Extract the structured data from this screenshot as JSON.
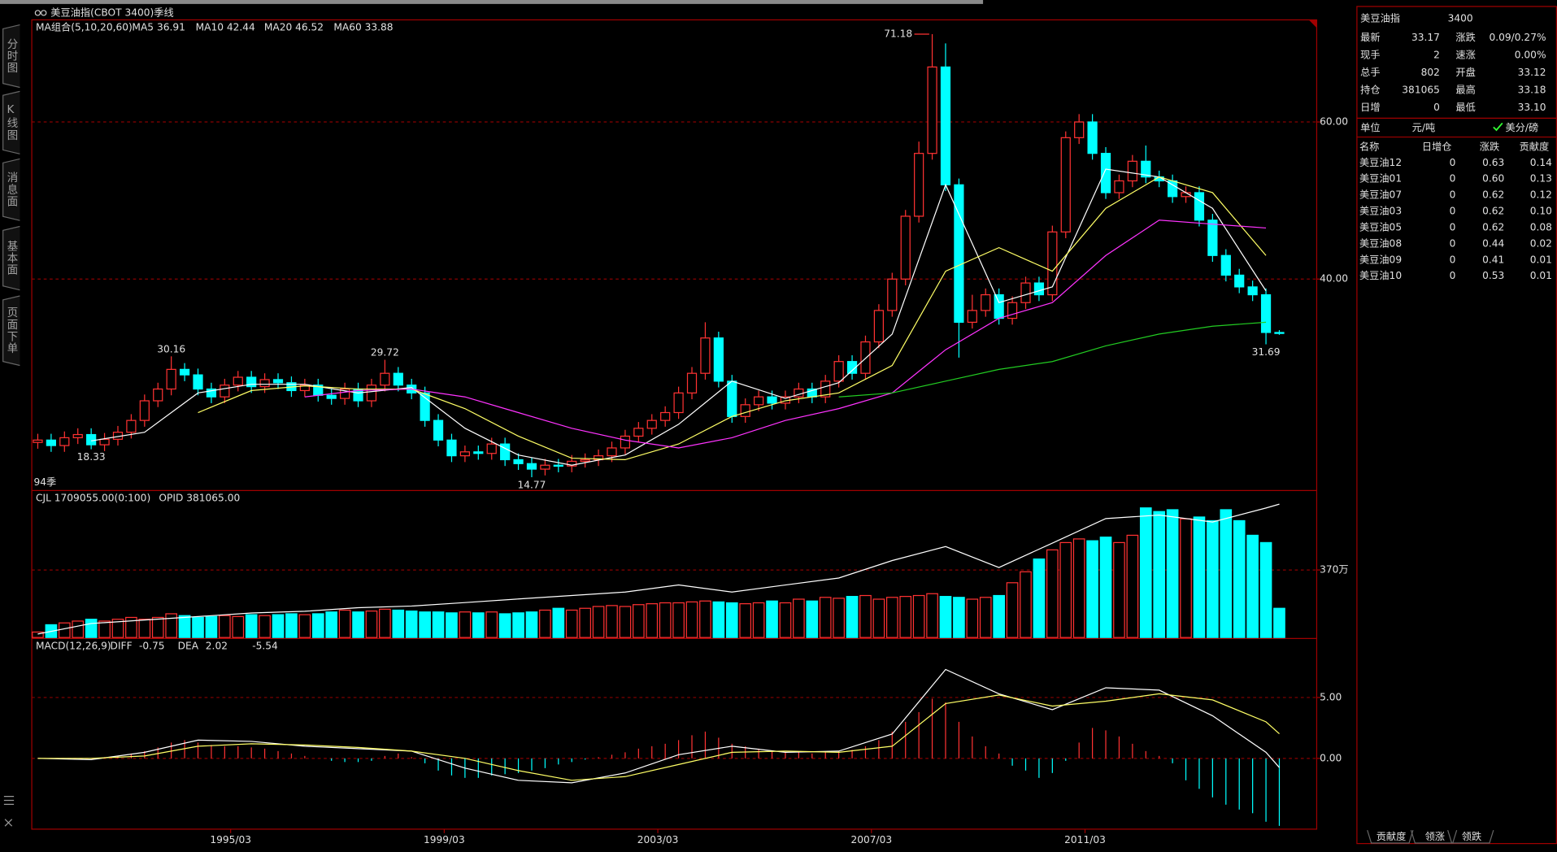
{
  "header": {
    "title": "美豆油指(CBOT 3400)季线"
  },
  "sidebar": {
    "tabs": [
      "分时图",
      "K线图",
      "消息面",
      "基本面",
      "页面下单"
    ]
  },
  "chart_data": [
    {
      "type": "candlestick",
      "legend_title": "MA组合(5,10,20,60)",
      "period_label": "94季",
      "up_color": "#ff3232",
      "down_color": "#00ffff",
      "open": [
        19.2,
        19.5,
        18.8,
        19.8,
        20.2,
        18.9,
        19.6,
        20.5,
        22.0,
        24.5,
        26.0,
        28.5,
        27.8,
        26.0,
        25.0,
        26.5,
        27.5,
        26.3,
        27.2,
        26.8,
        25.8,
        26.5,
        25.2,
        24.8,
        26.0,
        24.5,
        26.5,
        28.0,
        26.5,
        25.5,
        22.0,
        19.5,
        17.5,
        18.0,
        17.8,
        19.0,
        17.0,
        16.5,
        15.8,
        16.3,
        16.2,
        16.8,
        17.0,
        17.5,
        18.5,
        20.0,
        21.0,
        22.0,
        23.0,
        25.5,
        28.0,
        32.5,
        27.0,
        22.5,
        24.0,
        25.0,
        24.2,
        25.0,
        26.0,
        25.0,
        27.0,
        29.5,
        28.0,
        32.0,
        36.0,
        40.0,
        48.0,
        56.0,
        67.0,
        52.0,
        34.5,
        36.0,
        38.0,
        35.0,
        37.0,
        39.5,
        38.0,
        46.0,
        58.0,
        60.0,
        56.0,
        51.0,
        52.5,
        55.0,
        53.0,
        52.5,
        50.5,
        51.0,
        47.5,
        43.0,
        40.5,
        39.0,
        38.0,
        33.2
      ],
      "high": [
        20.3,
        20.3,
        20.6,
        21.0,
        21.0,
        20.4,
        21.3,
        22.8,
        25.3,
        26.8,
        30.16,
        29.3,
        28.6,
        26.8,
        27.3,
        28.3,
        28.3,
        28.0,
        28.0,
        27.6,
        27.3,
        27.3,
        26.0,
        26.8,
        26.8,
        27.3,
        29.72,
        28.8,
        27.3,
        26.3,
        22.8,
        20.3,
        18.8,
        18.8,
        19.8,
        19.8,
        17.8,
        17.3,
        17.1,
        17.1,
        17.6,
        17.8,
        18.3,
        19.3,
        20.8,
        21.8,
        22.8,
        23.8,
        26.3,
        28.8,
        34.5,
        33.3,
        27.8,
        24.8,
        25.8,
        25.8,
        25.8,
        26.8,
        26.8,
        27.8,
        30.3,
        30.3,
        32.8,
        36.8,
        40.8,
        48.8,
        57.5,
        71.18,
        70.0,
        52.8,
        38.0,
        38.8,
        38.8,
        37.8,
        40.3,
        40.3,
        46.8,
        58.8,
        61.0,
        61.0,
        56.8,
        53.3,
        55.8,
        57.0,
        53.8,
        53.3,
        51.8,
        51.8,
        48.3,
        43.8,
        41.3,
        39.8,
        38.8,
        33.5
      ],
      "low": [
        18.4,
        18.0,
        18.0,
        19.0,
        18.33,
        18.1,
        18.8,
        19.7,
        21.2,
        23.7,
        25.2,
        27.0,
        25.2,
        24.2,
        24.2,
        25.7,
        25.5,
        25.5,
        26.0,
        25.0,
        25.0,
        24.4,
        24.0,
        24.0,
        23.7,
        23.7,
        25.7,
        25.7,
        24.7,
        21.2,
        18.7,
        16.7,
        16.7,
        17.0,
        17.0,
        16.2,
        15.7,
        14.77,
        15.0,
        15.4,
        15.4,
        16.0,
        16.2,
        16.7,
        17.7,
        19.2,
        20.2,
        21.2,
        22.2,
        24.7,
        27.2,
        26.2,
        21.7,
        21.7,
        23.2,
        23.4,
        23.4,
        24.2,
        24.2,
        24.2,
        26.2,
        27.2,
        27.2,
        31.2,
        35.2,
        39.2,
        47.2,
        55.2,
        51.2,
        30.0,
        33.7,
        35.2,
        34.2,
        34.2,
        36.2,
        37.2,
        37.2,
        45.2,
        57.2,
        55.2,
        50.2,
        50.2,
        51.7,
        52.2,
        51.7,
        49.7,
        49.7,
        46.7,
        42.2,
        39.7,
        38.2,
        37.2,
        31.69,
        32.9
      ],
      "close": [
        19.5,
        18.8,
        19.8,
        20.2,
        18.9,
        19.6,
        20.5,
        22.0,
        24.5,
        26.0,
        28.5,
        27.8,
        26.0,
        25.0,
        26.5,
        27.5,
        26.3,
        27.2,
        26.8,
        25.8,
        26.5,
        25.2,
        24.8,
        26.0,
        24.5,
        26.5,
        28.0,
        26.5,
        25.5,
        22.0,
        19.5,
        17.5,
        18.0,
        17.8,
        19.0,
        17.0,
        16.5,
        15.8,
        16.3,
        16.2,
        16.8,
        17.0,
        17.5,
        18.5,
        20.0,
        21.0,
        22.0,
        23.0,
        25.5,
        28.0,
        32.5,
        27.0,
        22.5,
        24.0,
        25.0,
        24.2,
        25.0,
        26.0,
        25.0,
        27.0,
        29.5,
        28.0,
        32.0,
        36.0,
        40.0,
        48.0,
        56.0,
        67.0,
        52.0,
        34.5,
        36.0,
        38.0,
        35.0,
        37.0,
        39.5,
        38.0,
        46.0,
        58.0,
        60.0,
        56.0,
        51.0,
        52.5,
        55.0,
        53.0,
        52.5,
        50.5,
        51.0,
        47.5,
        43.0,
        40.5,
        39.0,
        38.0,
        33.2,
        33.17
      ],
      "series": [
        {
          "name": "MA5 36.91",
          "color": "#ffffff",
          "x": [
            4,
            8,
            12,
            16,
            20,
            24,
            28,
            32,
            36,
            40,
            44,
            48,
            52,
            56,
            60,
            64,
            68,
            72,
            76,
            80,
            84,
            88,
            92
          ],
          "values": [
            19.4,
            20.5,
            25.5,
            26.6,
            26.6,
            25.5,
            26.2,
            21.0,
            17.6,
            16.3,
            17.6,
            21.5,
            27.0,
            24.8,
            26.8,
            33.0,
            52.0,
            37.0,
            39.0,
            54.0,
            53.0,
            49.0,
            38.5
          ]
        },
        {
          "name": "MA10 42.44",
          "color": "#ffff66",
          "x": [
            12,
            16,
            20,
            24,
            28,
            32,
            36,
            40,
            44,
            48,
            52,
            56,
            60,
            64,
            68,
            72,
            76,
            80,
            84,
            88,
            92
          ],
          "values": [
            23.0,
            25.8,
            26.4,
            26.0,
            26.0,
            23.5,
            20.0,
            17.2,
            17.0,
            19.0,
            22.5,
            24.5,
            25.5,
            29.0,
            41.0,
            44.0,
            41.0,
            49.0,
            53.0,
            51.0,
            43.0
          ]
        },
        {
          "name": "MA20 46.52",
          "color": "#ff33ff",
          "x": [
            20,
            24,
            28,
            32,
            36,
            40,
            44,
            48,
            52,
            56,
            60,
            64,
            68,
            72,
            76,
            80,
            84,
            88,
            92
          ],
          "values": [
            25.0,
            25.8,
            26.0,
            25.0,
            23.0,
            21.0,
            19.5,
            18.5,
            19.8,
            22.0,
            23.5,
            25.5,
            31.0,
            35.0,
            37.0,
            43.0,
            47.5,
            47.0,
            46.5
          ]
        },
        {
          "name": "MA60 33.88",
          "color": "#22cc22",
          "x": [
            60,
            64,
            68,
            72,
            76,
            80,
            84,
            88,
            92
          ],
          "values": [
            25.0,
            25.5,
            27.0,
            28.5,
            29.5,
            31.5,
            33.0,
            34.0,
            34.5
          ]
        }
      ],
      "ylim": [
        13.2,
        73
      ],
      "yticks": [
        {
          "value": 60,
          "label": "60.00"
        },
        {
          "value": 40,
          "label": "40.00"
        }
      ],
      "grid": true
    },
    {
      "type": "bar",
      "series": [
        {
          "name": "CJL 1709055.00(0:100)",
          "values": [
            30,
            70,
            80,
            90,
            100,
            90,
            100,
            110,
            100,
            110,
            130,
            120,
            110,
            115,
            120,
            115,
            125,
            120,
            125,
            130,
            125,
            130,
            140,
            150,
            140,
            145,
            155,
            150,
            145,
            140,
            140,
            135,
            140,
            135,
            140,
            130,
            135,
            140,
            150,
            160,
            150,
            160,
            170,
            175,
            170,
            180,
            185,
            190,
            190,
            195,
            200,
            195,
            190,
            185,
            190,
            200,
            190,
            210,
            200,
            220,
            215,
            225,
            230,
            210,
            220,
            225,
            230,
            240,
            225,
            220,
            210,
            220,
            230,
            300,
            360,
            430,
            480,
            520,
            540,
            530,
            550,
            520,
            560,
            710,
            690,
            700,
            650,
            660,
            640,
            700,
            640,
            560,
            520,
            160
          ]
        },
        {
          "name": "OPID 381065.00",
          "color": "#ffffff",
          "axis": "y2",
          "x": [
            0,
            4,
            8,
            12,
            16,
            20,
            24,
            28,
            32,
            36,
            40,
            44,
            48,
            52,
            56,
            60,
            64,
            68,
            72,
            76,
            80,
            84,
            88,
            92,
            93
          ],
          "values": [
            1,
            4,
            5,
            6,
            7,
            7.5,
            8.5,
            9,
            10,
            11,
            12,
            13,
            15,
            13,
            15,
            17,
            22,
            26,
            20,
            27,
            34,
            35,
            33,
            37,
            38.1065
          ]
        }
      ],
      "ylim": [
        0,
        805
      ],
      "yticks": [
        {
          "value": 370,
          "label": "370万"
        }
      ],
      "y2lim": [
        0,
        42
      ],
      "grid": true
    },
    {
      "type": "macd",
      "title": "MACD(12,26,9)",
      "series": [
        {
          "name": "MACD",
          "values": [
            0,
            0,
            0,
            0,
            0,
            0.1,
            0.2,
            0.4,
            0.6,
            0.9,
            1.3,
            1.5,
            1.3,
            1.1,
            1.0,
            1.0,
            0.9,
            0.8,
            0.6,
            0.4,
            0.2,
            0,
            -0.2,
            -0.3,
            -0.3,
            -0.2,
            0.2,
            0.4,
            0.1,
            -0.4,
            -1.0,
            -1.4,
            -1.6,
            -1.6,
            -1.4,
            -1.3,
            -1.2,
            -1.0,
            -0.8,
            -0.5,
            -0.3,
            -0.1,
            0.1,
            0.3,
            0.5,
            0.8,
            1.0,
            1.2,
            1.5,
            1.9,
            2.2,
            1.7,
            1.2,
            1.0,
            0.8,
            0.6,
            0.5,
            0.5,
            0.4,
            0.5,
            0.6,
            0.7,
            1.0,
            1.5,
            2.2,
            3.0,
            3.8,
            4.9,
            4.6,
            3.0,
            1.8,
            1.0,
            0.4,
            -0.6,
            -1.0,
            -1.6,
            -1.2,
            -0.2,
            1.3,
            2.5,
            2.3,
            1.8,
            1.2,
            0.6,
            0.2,
            -0.4,
            -1.8,
            -2.5,
            -3.2,
            -3.8,
            -4.2,
            -4.5,
            -5.2,
            -5.54
          ]
        },
        {
          "name": "DIFF",
          "color": "#ffffff",
          "x": [
            0,
            4,
            8,
            12,
            16,
            20,
            24,
            28,
            32,
            36,
            40,
            44,
            48,
            52,
            56,
            60,
            64,
            68,
            72,
            76,
            80,
            84,
            88,
            92,
            93
          ],
          "values": [
            0,
            -0.1,
            0.5,
            1.5,
            1.4,
            1.0,
            0.8,
            0.6,
            -0.8,
            -1.8,
            -2.0,
            -1.2,
            0.3,
            1.0,
            0.5,
            0.6,
            2.0,
            7.3,
            5.3,
            4.0,
            5.8,
            5.6,
            3.5,
            0.5,
            -0.75
          ]
        },
        {
          "name": "DEA",
          "color": "#ffff66",
          "x": [
            0,
            4,
            8,
            12,
            16,
            20,
            24,
            28,
            32,
            36,
            40,
            44,
            48,
            52,
            56,
            60,
            64,
            68,
            72,
            76,
            80,
            84,
            88,
            92,
            93
          ],
          "values": [
            0,
            0,
            0.2,
            1.0,
            1.2,
            1.1,
            0.9,
            0.6,
            0,
            -1.0,
            -1.8,
            -1.5,
            -0.5,
            0.5,
            0.6,
            0.5,
            1.0,
            4.5,
            5.2,
            4.3,
            4.7,
            5.3,
            4.8,
            3.0,
            2.02
          ]
        }
      ],
      "ylim": [
        -5.81,
        9.76
      ],
      "yticks": [
        {
          "value": 5,
          "label": "5.00"
        },
        {
          "value": 0,
          "label": "0.00"
        }
      ],
      "grid": true,
      "xlim": [
        -0.45,
        95.8
      ],
      "xticks": [
        {
          "value": 14,
          "label": "1995/03"
        },
        {
          "value": 30,
          "label": "1999/03"
        },
        {
          "value": 46,
          "label": "2003/03"
        },
        {
          "value": 62,
          "label": "2007/03"
        },
        {
          "value": 78,
          "label": "2011/03"
        }
      ]
    }
  ],
  "quote_panel": {
    "title": "美豆油指",
    "code": "3400",
    "quotes": [
      [
        "最新",
        "33.17",
        "涨跌",
        "0.09/0.27%"
      ],
      [
        "现手",
        "2",
        "速涨",
        "0.00%"
      ],
      [
        "总手",
        "802",
        "开盘",
        "33.12"
      ],
      [
        "持仓",
        "381065",
        "最高",
        "33.18"
      ],
      [
        "日增",
        "0",
        "最低",
        "33.10"
      ]
    ],
    "unit": {
      "label": "单位",
      "value": "元/吨",
      "option": "美分/磅"
    },
    "table": {
      "header": [
        "名称",
        "日增仓",
        "涨跌",
        "贡献度"
      ],
      "rows": [
        [
          "美豆油12",
          "0",
          "0.63",
          "0.14"
        ],
        [
          "美豆油01",
          "0",
          "0.60",
          "0.13"
        ],
        [
          "美豆油07",
          "0",
          "0.62",
          "0.12"
        ],
        [
          "美豆油03",
          "0",
          "0.62",
          "0.10"
        ],
        [
          "美豆油05",
          "0",
          "0.62",
          "0.08"
        ],
        [
          "美豆油08",
          "0",
          "0.44",
          "0.02"
        ],
        [
          "美豆油09",
          "0",
          "0.41",
          "0.01"
        ],
        [
          "美豆油10",
          "0",
          "0.53",
          "0.01"
        ]
      ]
    },
    "tabs": [
      "贡献度",
      "领涨",
      "领跌"
    ]
  }
}
